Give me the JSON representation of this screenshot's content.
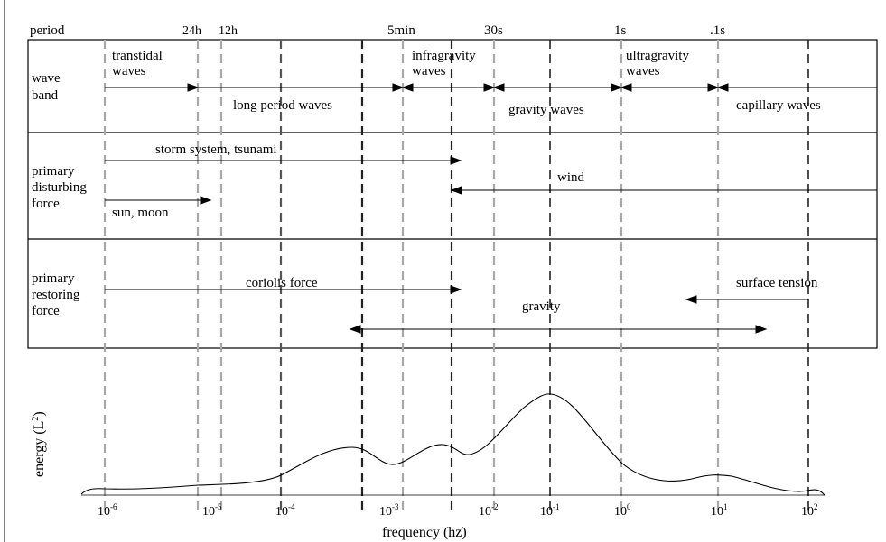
{
  "period_label": "period",
  "period_ticks": [
    "24h",
    "12h",
    "5min",
    "30s",
    "1s",
    ".1s"
  ],
  "rows": {
    "wave_band": {
      "label_lines": [
        "wave",
        "band"
      ],
      "labels": {
        "transtidal": [
          "transtidal",
          "waves"
        ],
        "infragravity": [
          "infragravity",
          "waves"
        ],
        "ultragravity": [
          "ultragravity",
          "waves"
        ],
        "long_period": "long period waves",
        "gravity": "gravity waves",
        "capillary": "capillary waves"
      }
    },
    "disturbing": {
      "label_lines": [
        "primary",
        "disturbing",
        "force"
      ],
      "labels": {
        "storm": "storm system, tsunami",
        "wind": "wind",
        "sun_moon": "sun, moon"
      }
    },
    "restoring": {
      "label_lines": [
        "primary",
        "restoring",
        "force"
      ],
      "labels": {
        "coriolis": "coriolis force",
        "gravity": "gravity",
        "surface_tension": "surface tension"
      }
    }
  },
  "plot": {
    "ylabel": "energy (L",
    "ylabel_sup": "2",
    "ylabel_close": ")",
    "xlabel": "frequency (hz)",
    "x_ticks": [
      {
        "base": "10",
        "exp": "-6"
      },
      {
        "base": "10",
        "exp": "-5"
      },
      {
        "base": "10",
        "exp": "-4"
      },
      {
        "base": "10",
        "exp": "-3"
      },
      {
        "base": "10",
        "exp": "-2"
      },
      {
        "base": "10",
        "exp": "-1"
      },
      {
        "base": "10",
        "exp": "0"
      },
      {
        "base": "10",
        "exp": "1"
      },
      {
        "base": "10",
        "exp": "2"
      }
    ]
  },
  "colors": {
    "ink": "#000000",
    "gray_dash": "#a8a8a8"
  }
}
